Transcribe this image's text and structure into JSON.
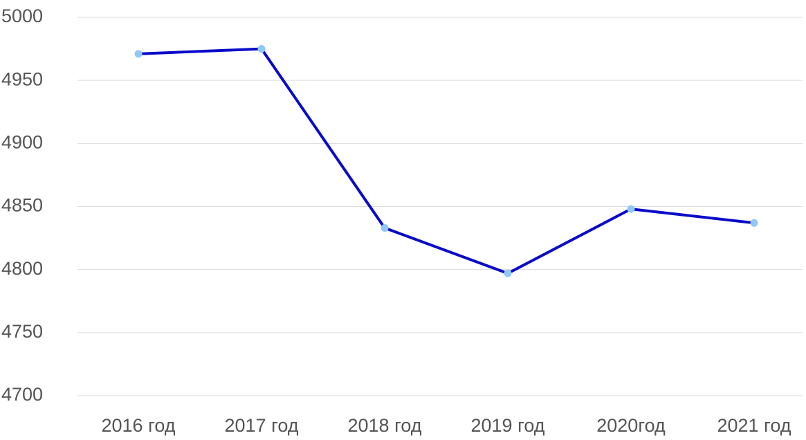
{
  "chart_data": {
    "type": "line",
    "categories": [
      "2016 год",
      "2017 год",
      "2018 год",
      "2019 год",
      "2020год",
      "2021 год"
    ],
    "series": [
      {
        "values": [
          4971,
          4975,
          4833,
          4797,
          4848,
          4837
        ],
        "color": "#0a0ac8",
        "marker_color": "#90c8f8"
      }
    ],
    "ylim": [
      4700,
      5000
    ],
    "yticks": [
      4700,
      4750,
      4800,
      4850,
      4900,
      4950,
      5000
    ],
    "grid": true
  }
}
